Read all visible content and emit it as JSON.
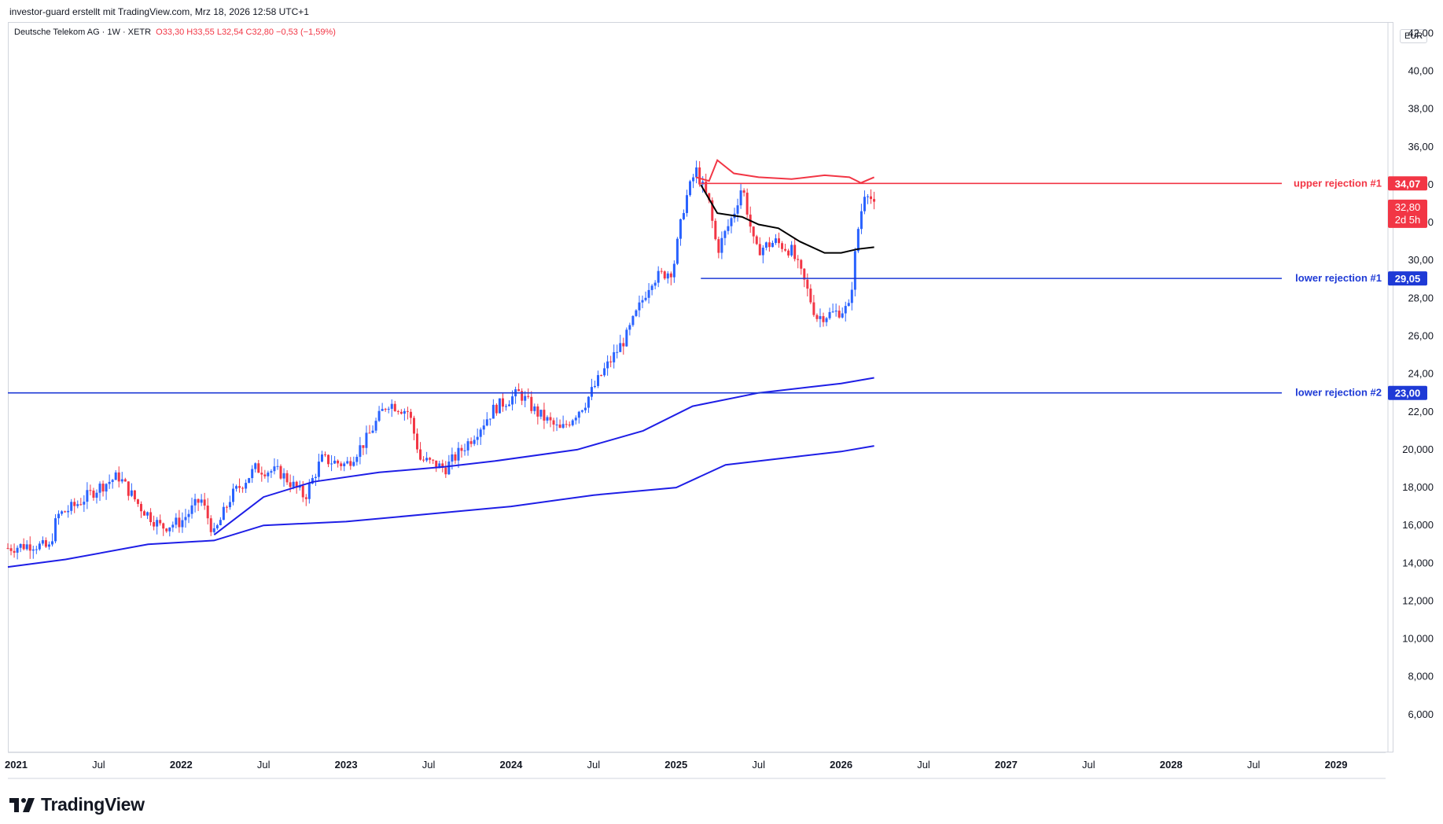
{
  "header": {
    "credit": "investor-guard erstellt mit TradingView.com, Mrz 18, 2026 12:58 UTC+1"
  },
  "symbol_line": {
    "name": "Deutsche Telekom AG · 1W · XETR",
    "ohlc": "O33,30  H33,55  L32,54  C32,80  −0,53 (−1,59%)"
  },
  "currency": "EUR",
  "footer": {
    "brand": "TradingView"
  },
  "colors": {
    "up": "#2962ff",
    "down": "#f23645",
    "ma_black": "#000000",
    "ma_blue": "#1e1ee6",
    "upper_line": "#f23645",
    "lower_line": "#1e3ad6"
  },
  "chart_data": {
    "type": "line",
    "yaxis": {
      "min": 4,
      "max": 42.6,
      "ticks": [
        "42,00",
        "40,00",
        "38,00",
        "36,00",
        "34,00",
        "32,00",
        "30,00",
        "28,00",
        "26,00",
        "24,00",
        "22,00",
        "20,000",
        "18,000",
        "16,000",
        "14,000",
        "12,000",
        "10,000",
        "8,000",
        "6,000"
      ],
      "tick_values": [
        42,
        40,
        38,
        36,
        34,
        32,
        30,
        28,
        26,
        24,
        22,
        20,
        18,
        16,
        14,
        12,
        10,
        8,
        6
      ]
    },
    "xaxis": {
      "min": 2020.95,
      "max": 2029.3,
      "ticks": [
        {
          "label": "2021",
          "x": 2021.0,
          "bold": true
        },
        {
          "label": "Jul",
          "x": 2021.5,
          "bold": false
        },
        {
          "label": "2022",
          "x": 2022.0,
          "bold": true
        },
        {
          "label": "Jul",
          "x": 2022.5,
          "bold": false
        },
        {
          "label": "2023",
          "x": 2023.0,
          "bold": true
        },
        {
          "label": "Jul",
          "x": 2023.5,
          "bold": false
        },
        {
          "label": "2024",
          "x": 2024.0,
          "bold": true
        },
        {
          "label": "Jul",
          "x": 2024.5,
          "bold": false
        },
        {
          "label": "2025",
          "x": 2025.0,
          "bold": true
        },
        {
          "label": "Jul",
          "x": 2025.5,
          "bold": false
        },
        {
          "label": "2026",
          "x": 2026.0,
          "bold": true
        },
        {
          "label": "Jul",
          "x": 2026.5,
          "bold": false
        },
        {
          "label": "2027",
          "x": 2027.0,
          "bold": true
        },
        {
          "label": "Jul",
          "x": 2027.5,
          "bold": false
        },
        {
          "label": "2028",
          "x": 2028.0,
          "bold": true
        },
        {
          "label": "Jul",
          "x": 2028.5,
          "bold": false
        },
        {
          "label": "2029",
          "x": 2029.0,
          "bold": true
        }
      ]
    },
    "price_path": [
      [
        2020.95,
        14.8
      ],
      [
        2021.1,
        15.0
      ],
      [
        2021.2,
        14.8
      ],
      [
        2021.25,
        16.5
      ],
      [
        2021.35,
        17.0
      ],
      [
        2021.5,
        18.0
      ],
      [
        2021.62,
        18.6
      ],
      [
        2021.75,
        17.0
      ],
      [
        2021.88,
        15.9
      ],
      [
        2022.0,
        16.2
      ],
      [
        2022.12,
        17.4
      ],
      [
        2022.2,
        15.5
      ],
      [
        2022.3,
        17.5
      ],
      [
        2022.45,
        19.0
      ],
      [
        2022.6,
        18.8
      ],
      [
        2022.75,
        17.5
      ],
      [
        2022.85,
        19.5
      ],
      [
        2023.0,
        19.2
      ],
      [
        2023.12,
        20.5
      ],
      [
        2023.25,
        22.5
      ],
      [
        2023.38,
        22.0
      ],
      [
        2023.45,
        19.5
      ],
      [
        2023.6,
        19.0
      ],
      [
        2023.75,
        20.5
      ],
      [
        2023.9,
        22.2
      ],
      [
        2024.05,
        23.0
      ],
      [
        2024.15,
        22.0
      ],
      [
        2024.3,
        21.0
      ],
      [
        2024.45,
        22.5
      ],
      [
        2024.55,
        24.0
      ],
      [
        2024.7,
        26.0
      ],
      [
        2024.85,
        29.0
      ],
      [
        2024.98,
        29.5
      ],
      [
        2025.05,
        33.0
      ],
      [
        2025.12,
        34.8
      ],
      [
        2025.2,
        33.0
      ],
      [
        2025.25,
        30.5
      ],
      [
        2025.35,
        32.5
      ],
      [
        2025.4,
        34.0
      ],
      [
        2025.48,
        30.5
      ],
      [
        2025.6,
        31.0
      ],
      [
        2025.7,
        30.5
      ],
      [
        2025.78,
        28.8
      ],
      [
        2025.85,
        27.0
      ],
      [
        2025.95,
        27.2
      ],
      [
        2026.05,
        27.5
      ],
      [
        2026.1,
        31.5
      ],
      [
        2026.15,
        34.0
      ],
      [
        2026.2,
        32.8
      ]
    ],
    "candles_bounds": {
      "start": 2020.95,
      "end": 2026.2
    },
    "series": [
      {
        "color": "#1e1ee6",
        "points": [
          [
            2020.95,
            13.8
          ],
          [
            2021.3,
            14.2
          ],
          [
            2021.8,
            15.0
          ],
          [
            2022.2,
            15.2
          ],
          [
            2022.5,
            16.0
          ],
          [
            2023.0,
            16.2
          ],
          [
            2023.5,
            16.6
          ],
          [
            2024.0,
            17.0
          ],
          [
            2024.5,
            17.6
          ],
          [
            2025.0,
            18.0
          ],
          [
            2025.3,
            19.2
          ],
          [
            2025.7,
            19.6
          ],
          [
            2026.0,
            19.9
          ],
          [
            2026.2,
            20.2
          ]
        ]
      },
      {
        "color": "#1e1ee6",
        "points": [
          [
            2022.2,
            15.5
          ],
          [
            2022.5,
            17.5
          ],
          [
            2022.8,
            18.3
          ],
          [
            2023.2,
            18.8
          ],
          [
            2023.6,
            19.1
          ],
          [
            2023.9,
            19.4
          ],
          [
            2024.4,
            20.0
          ],
          [
            2024.8,
            21.0
          ],
          [
            2025.1,
            22.3
          ],
          [
            2025.5,
            23.0
          ],
          [
            2025.8,
            23.3
          ],
          [
            2026.0,
            23.5
          ],
          [
            2026.2,
            23.8
          ]
        ]
      },
      {
        "color": "#000000",
        "points": [
          [
            2025.15,
            34.0
          ],
          [
            2025.25,
            32.5
          ],
          [
            2025.4,
            32.3
          ],
          [
            2025.5,
            31.9
          ],
          [
            2025.62,
            31.7
          ],
          [
            2025.75,
            31.0
          ],
          [
            2025.9,
            30.4
          ],
          [
            2026.0,
            30.4
          ],
          [
            2026.1,
            30.6
          ],
          [
            2026.2,
            30.7
          ]
        ]
      },
      {
        "color": "#f23645",
        "points": [
          [
            2025.12,
            34.4
          ],
          [
            2025.2,
            34.2
          ],
          [
            2025.25,
            35.3
          ],
          [
            2025.35,
            34.6
          ],
          [
            2025.5,
            34.4
          ],
          [
            2025.7,
            34.3
          ],
          [
            2025.9,
            34.5
          ],
          [
            2026.05,
            34.4
          ],
          [
            2026.12,
            34.1
          ],
          [
            2026.2,
            34.4
          ]
        ]
      }
    ],
    "levels": [
      {
        "label": "upper rejection #1",
        "value": 34.07,
        "value_text": "34,07",
        "color": "#f23645",
        "x_start": 2025.15
      },
      {
        "label": "lower rejection #1",
        "value": 29.05,
        "value_text": "29,05",
        "color": "#1e3ad6",
        "x_start": 2025.15
      },
      {
        "label": "lower rejection #2",
        "value": 23.0,
        "value_text": "23,00",
        "color": "#1e3ad6",
        "x_start": 2020.95
      }
    ],
    "last_price": {
      "value": 32.8,
      "value_text": "32,80",
      "countdown": "2d 5h",
      "color": "#f23645"
    }
  }
}
